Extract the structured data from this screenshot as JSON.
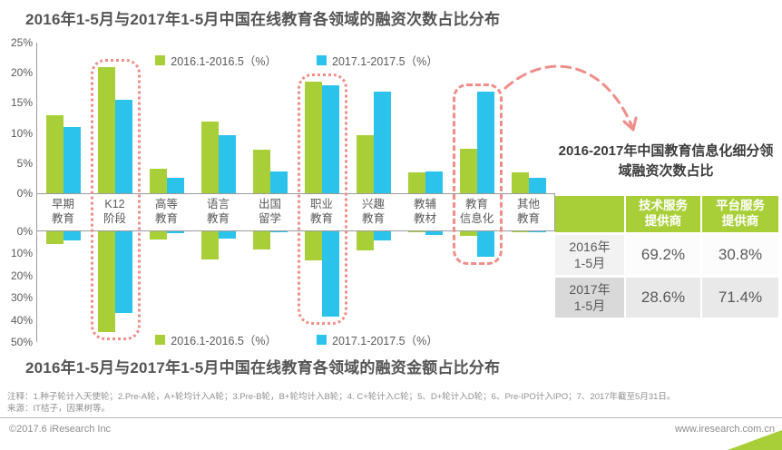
{
  "colors": {
    "green": "#a8cf38",
    "blue": "#2bc3ec",
    "annotation_pink": "#ef8e89"
  },
  "chart_data": [
    {
      "type": "bar",
      "title": "2016年1-5月与2017年1-5月中国在线教育各领域的融资次数占比分布",
      "categories": [
        "早期教育",
        "K12阶段",
        "高等教育",
        "语言教育",
        "出国留学",
        "职业教育",
        "兴趣教育",
        "教辅教材",
        "教育信息化",
        "其他教育"
      ],
      "categories_display": [
        "早期\n教育",
        "K12\n阶段",
        "高等\n教育",
        "语言\n教育",
        "出国\n留学",
        "职业\n教育",
        "兴趣\n教育",
        "教辅\n教材",
        "教育\n信息化",
        "其他\n教育"
      ],
      "series": [
        {
          "name": "2016.1-2016.5（%）",
          "color": "#a8cf38",
          "values": [
            13.0,
            21.0,
            4.1,
            11.9,
            7.3,
            18.5,
            9.7,
            3.5,
            7.4,
            3.5
          ]
        },
        {
          "name": "2017.1-2017.5（%）",
          "color": "#2bc3ec",
          "values": [
            11.0,
            15.5,
            2.5,
            9.7,
            3.6,
            17.9,
            16.8,
            3.6,
            16.8,
            2.6
          ]
        }
      ],
      "ylim": [
        0,
        25
      ],
      "yticks": [
        "25%",
        "20%",
        "15%",
        "10%",
        "5%",
        "0%"
      ],
      "grid": false,
      "legend_position": "top-center"
    },
    {
      "type": "bar",
      "orientation": "inverted",
      "title": "2016年1-5月与2017年1-5月中国在线教育各领域的融资金额占比分布",
      "categories": [
        "早期教育",
        "K12阶段",
        "高等教育",
        "语言教育",
        "出国留学",
        "职业教育",
        "兴趣教育",
        "教辅教材",
        "教育信息化",
        "其他教育"
      ],
      "series": [
        {
          "name": "2016.1-2016.5（%）",
          "color": "#a8cf38",
          "values": [
            5.9,
            45.5,
            3.8,
            12.5,
            8.3,
            13.0,
            8.5,
            0.5,
            2.0,
            0.3
          ]
        },
        {
          "name": "2017.1-2017.5（%）",
          "color": "#2bc3ec",
          "values": [
            4.3,
            36.7,
            0.7,
            3.4,
            0.4,
            38.5,
            4.0,
            1.7,
            11.5,
            0.6
          ]
        }
      ],
      "ylim": [
        0,
        50
      ],
      "yticks": [
        "0%",
        "10%",
        "20%",
        "30%",
        "40%",
        "50%"
      ],
      "grid": false,
      "legend_position": "bottom-center"
    }
  ],
  "annotations": {
    "boxes": [
      {
        "category_index": 1,
        "category": "K12阶段",
        "style": "dotted"
      },
      {
        "category_index": 5,
        "category": "职业教育",
        "style": "dotted"
      },
      {
        "category_index": 8,
        "category": "教育信息化",
        "style": "dashed"
      }
    ],
    "arrow": {
      "from": "教育信息化 annotation box",
      "to": "side panel title"
    }
  },
  "side_panel": {
    "title": "2016-2017年中国教育信息化细分领域融资次数占比",
    "table": {
      "headers": [
        "",
        "技术服务\n提供商",
        "平台服务\n提供商"
      ],
      "rows": [
        {
          "label": "2016年\n1-5月",
          "values": [
            "69.2%",
            "30.8%"
          ]
        },
        {
          "label": "2017年\n1-5月",
          "values": [
            "28.6%",
            "71.4%"
          ]
        }
      ]
    }
  },
  "notes": {
    "line1": "注释：1.种子轮计入天使轮；2.Pre-A轮，A+轮均计入A轮；3.Pre-B轮，B+轮均计入B轮；4. C+轮计入C轮；5、D+轮计入D轮；6、Pre-IPO计入IPO；7、2017年截至5月31日。",
    "line2": "来源：IT桔子，因果树等。"
  },
  "footer": {
    "left": "©2017.6 iResearch Inc",
    "right": "www.iresearch.com.cn"
  }
}
